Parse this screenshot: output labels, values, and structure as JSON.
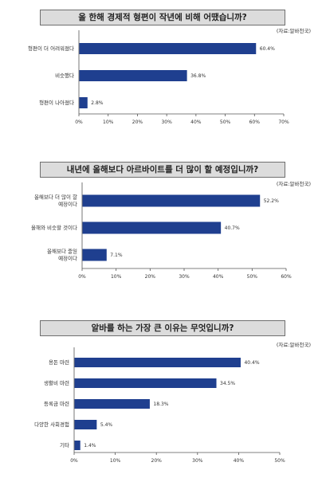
{
  "chart_data": [
    {
      "type": "bar",
      "orientation": "horizontal",
      "title": "올 한해 경제적 형편이 작년에 비해 어땠습니까?",
      "source": "(자료:알바천국)",
      "categories": [
        "형편이 더 어려워졌다",
        "비슷했다",
        "형편이 나아졌다"
      ],
      "values": [
        60.4,
        36.8,
        2.8
      ],
      "value_labels": [
        "60.4%",
        "36.8%",
        "2.8%"
      ],
      "xlim": [
        0,
        70
      ],
      "ticks": [
        "0%",
        "10%",
        "20%",
        "30%",
        "40%",
        "50%",
        "60%",
        "70%"
      ],
      "bar_color": "#1f3f8f"
    },
    {
      "type": "bar",
      "orientation": "horizontal",
      "title": "내년에 올해보다 아르바이트를 더 많이 할 예정입니까?",
      "source": "(자료:알바천국)",
      "categories": [
        [
          "올해보다 더 많이 할",
          "예정이다"
        ],
        [
          "올해와 비슷할 것이다"
        ],
        [
          "올해보다 줄일",
          "예정이다"
        ]
      ],
      "values": [
        52.2,
        40.7,
        7.1
      ],
      "value_labels": [
        "52.2%",
        "40.7%",
        "7.1%"
      ],
      "xlim": [
        0,
        60
      ],
      "ticks": [
        "0%",
        "10%",
        "20%",
        "30%",
        "40%",
        "50%",
        "60%"
      ],
      "bar_color": "#1f3f8f"
    },
    {
      "type": "bar",
      "orientation": "horizontal",
      "title": "알바를 하는 가장 큰 이유는 무엇입니까?",
      "source": "(자료:알바천국)",
      "categories": [
        "용돈 마련",
        "생활비 마련",
        "등록금 마련",
        "다양한 사회경험",
        "기타"
      ],
      "values": [
        40.4,
        34.5,
        18.3,
        5.4,
        1.4
      ],
      "value_labels": [
        "40.4%",
        "34.5%",
        "18.3%",
        "5.4%",
        "1.4%"
      ],
      "xlim": [
        0,
        50
      ],
      "ticks": [
        "0%",
        "10%",
        "20%",
        "30%",
        "40%",
        "50%"
      ],
      "bar_color": "#1f3f8f"
    }
  ]
}
